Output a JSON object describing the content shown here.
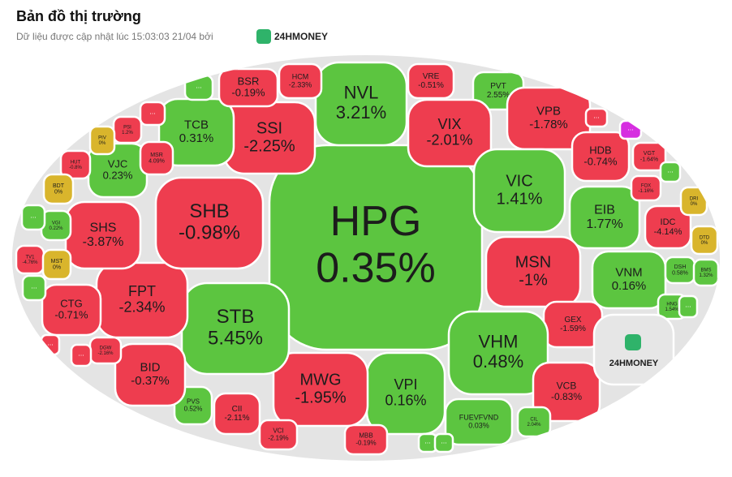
{
  "header": {
    "title": "Bản đồ thị trường",
    "subtitle": "Dữ liệu được cập nhật lúc 15:03:03 21/04 bởi",
    "brand": "24HMONEY"
  },
  "logo_cell": {
    "label": "24HMONEY",
    "color": "#e6e6e6"
  },
  "cells": [
    {
      "ticker": "HPG",
      "change": "0.35%",
      "color": "#5cc540"
    },
    {
      "ticker": "NVL",
      "change": "3.21%",
      "color": "#5cc540"
    },
    {
      "ticker": "SSI",
      "change": "-2.25%",
      "color": "#ee3d4f"
    },
    {
      "ticker": "TCB",
      "change": "0.31%",
      "color": "#5cc540"
    },
    {
      "ticker": "BSR",
      "change": "-0.19%",
      "color": "#ee3d4f"
    },
    {
      "ticker": "HCM",
      "change": "-2.33%",
      "color": "#ee3d4f"
    },
    {
      "ticker": "VRE",
      "change": "-0.51%",
      "color": "#ee3d4f"
    },
    {
      "ticker": "PVT",
      "change": "2.55%",
      "color": "#5cc540"
    },
    {
      "ticker": "VIX",
      "change": "-2.01%",
      "color": "#ee3d4f"
    },
    {
      "ticker": "VPB",
      "change": "-1.78%",
      "color": "#ee3d4f"
    },
    {
      "ticker": "HDB",
      "change": "-0.74%",
      "color": "#ee3d4f"
    },
    {
      "ticker": "VGT",
      "change": "-1.64%",
      "color": "#ee3d4f"
    },
    {
      "ticker": "VIC",
      "change": "1.41%",
      "color": "#5cc540"
    },
    {
      "ticker": "EIB",
      "change": "1.77%",
      "color": "#5cc540"
    },
    {
      "ticker": "IDC",
      "change": "-4.14%",
      "color": "#ee3d4f"
    },
    {
      "ticker": "FOX",
      "change": "-1.16%",
      "color": "#ee3d4f"
    },
    {
      "ticker": "DRI",
      "change": "0%",
      "color": "#d9b52c"
    },
    {
      "ticker": "DTD",
      "change": "0%",
      "color": "#d9b52c"
    },
    {
      "ticker": "MSN",
      "change": "-1%",
      "color": "#ee3d4f"
    },
    {
      "ticker": "VNM",
      "change": "0.16%",
      "color": "#5cc540"
    },
    {
      "ticker": "DSH",
      "change": "0.58%",
      "color": "#5cc540"
    },
    {
      "ticker": "BMS",
      "change": "1.32%",
      "color": "#5cc540"
    },
    {
      "ticker": "HNG",
      "change": "1.54%",
      "color": "#5cc540"
    },
    {
      "ticker": "GEX",
      "change": "-1.59%",
      "color": "#ee3d4f"
    },
    {
      "ticker": "VHM",
      "change": "0.48%",
      "color": "#5cc540"
    },
    {
      "ticker": "VCB",
      "change": "-0.83%",
      "color": "#ee3d4f"
    },
    {
      "ticker": "CIL",
      "change": "2.04%",
      "color": "#5cc540"
    },
    {
      "ticker": "FUEVFVND",
      "change": "0.03%",
      "color": "#5cc540"
    },
    {
      "ticker": "VPI",
      "change": "0.16%",
      "color": "#5cc540"
    },
    {
      "ticker": "MBB",
      "change": "-0.19%",
      "color": "#ee3d4f"
    },
    {
      "ticker": "MWG",
      "change": "-1.95%",
      "color": "#ee3d4f"
    },
    {
      "ticker": "VCI",
      "change": "-2.19%",
      "color": "#ee3d4f"
    },
    {
      "ticker": "CII",
      "change": "-2.11%",
      "color": "#ee3d4f"
    },
    {
      "ticker": "PVS",
      "change": "0.52%",
      "color": "#5cc540"
    },
    {
      "ticker": "STB",
      "change": "5.45%",
      "color": "#5cc540"
    },
    {
      "ticker": "BID",
      "change": "-0.37%",
      "color": "#ee3d4f"
    },
    {
      "ticker": "FPT",
      "change": "-2.34%",
      "color": "#ee3d4f"
    },
    {
      "ticker": "SHB",
      "change": "-0.98%",
      "color": "#ee3d4f"
    },
    {
      "ticker": "SHS",
      "change": "-3.87%",
      "color": "#ee3d4f"
    },
    {
      "ticker": "VJC",
      "change": "0.23%",
      "color": "#5cc540"
    },
    {
      "ticker": "CTG",
      "change": "-0.71%",
      "color": "#ee3d4f"
    },
    {
      "ticker": "DGW",
      "change": "-2.16%",
      "color": "#ee3d4f"
    },
    {
      "ticker": "MSR",
      "change": "4.09%",
      "color": "#ee3d4f"
    },
    {
      "ticker": "PSI",
      "change": "1.2%",
      "color": "#ee3d4f"
    },
    {
      "ticker": "PIV",
      "change": "0%",
      "color": "#d9b52c"
    },
    {
      "ticker": "HUT",
      "change": "-0.8%",
      "color": "#ee3d4f"
    },
    {
      "ticker": "BDT",
      "change": "0%",
      "color": "#d9b52c"
    },
    {
      "ticker": "VGI",
      "change": "0.22%",
      "color": "#5cc540"
    },
    {
      "ticker": "TV1",
      "change": "-4.76%",
      "color": "#ee3d4f"
    },
    {
      "ticker": "MST",
      "change": "0%",
      "color": "#d9b52c"
    },
    {
      "ticker": "...",
      "color": "#5cc540"
    },
    {
      "ticker": "...",
      "color": "#ee3d4f"
    },
    {
      "ticker": "...",
      "color": "#5cc540"
    },
    {
      "ticker": "...",
      "color": "#5cc540"
    },
    {
      "ticker": "...",
      "color": "#ee3d4f"
    },
    {
      "ticker": "...",
      "color": "#5cc540"
    },
    {
      "ticker": "...",
      "color": "#5cc540"
    },
    {
      "ticker": "...",
      "color": "#ee3d4f"
    },
    {
      "ticker": "...",
      "color": "#5cc540"
    },
    {
      "ticker": "...",
      "color": "#d62ee0"
    },
    {
      "ticker": "...",
      "color": "#5cc540"
    },
    {
      "ticker": "...",
      "color": "#ee3d4f"
    }
  ]
}
